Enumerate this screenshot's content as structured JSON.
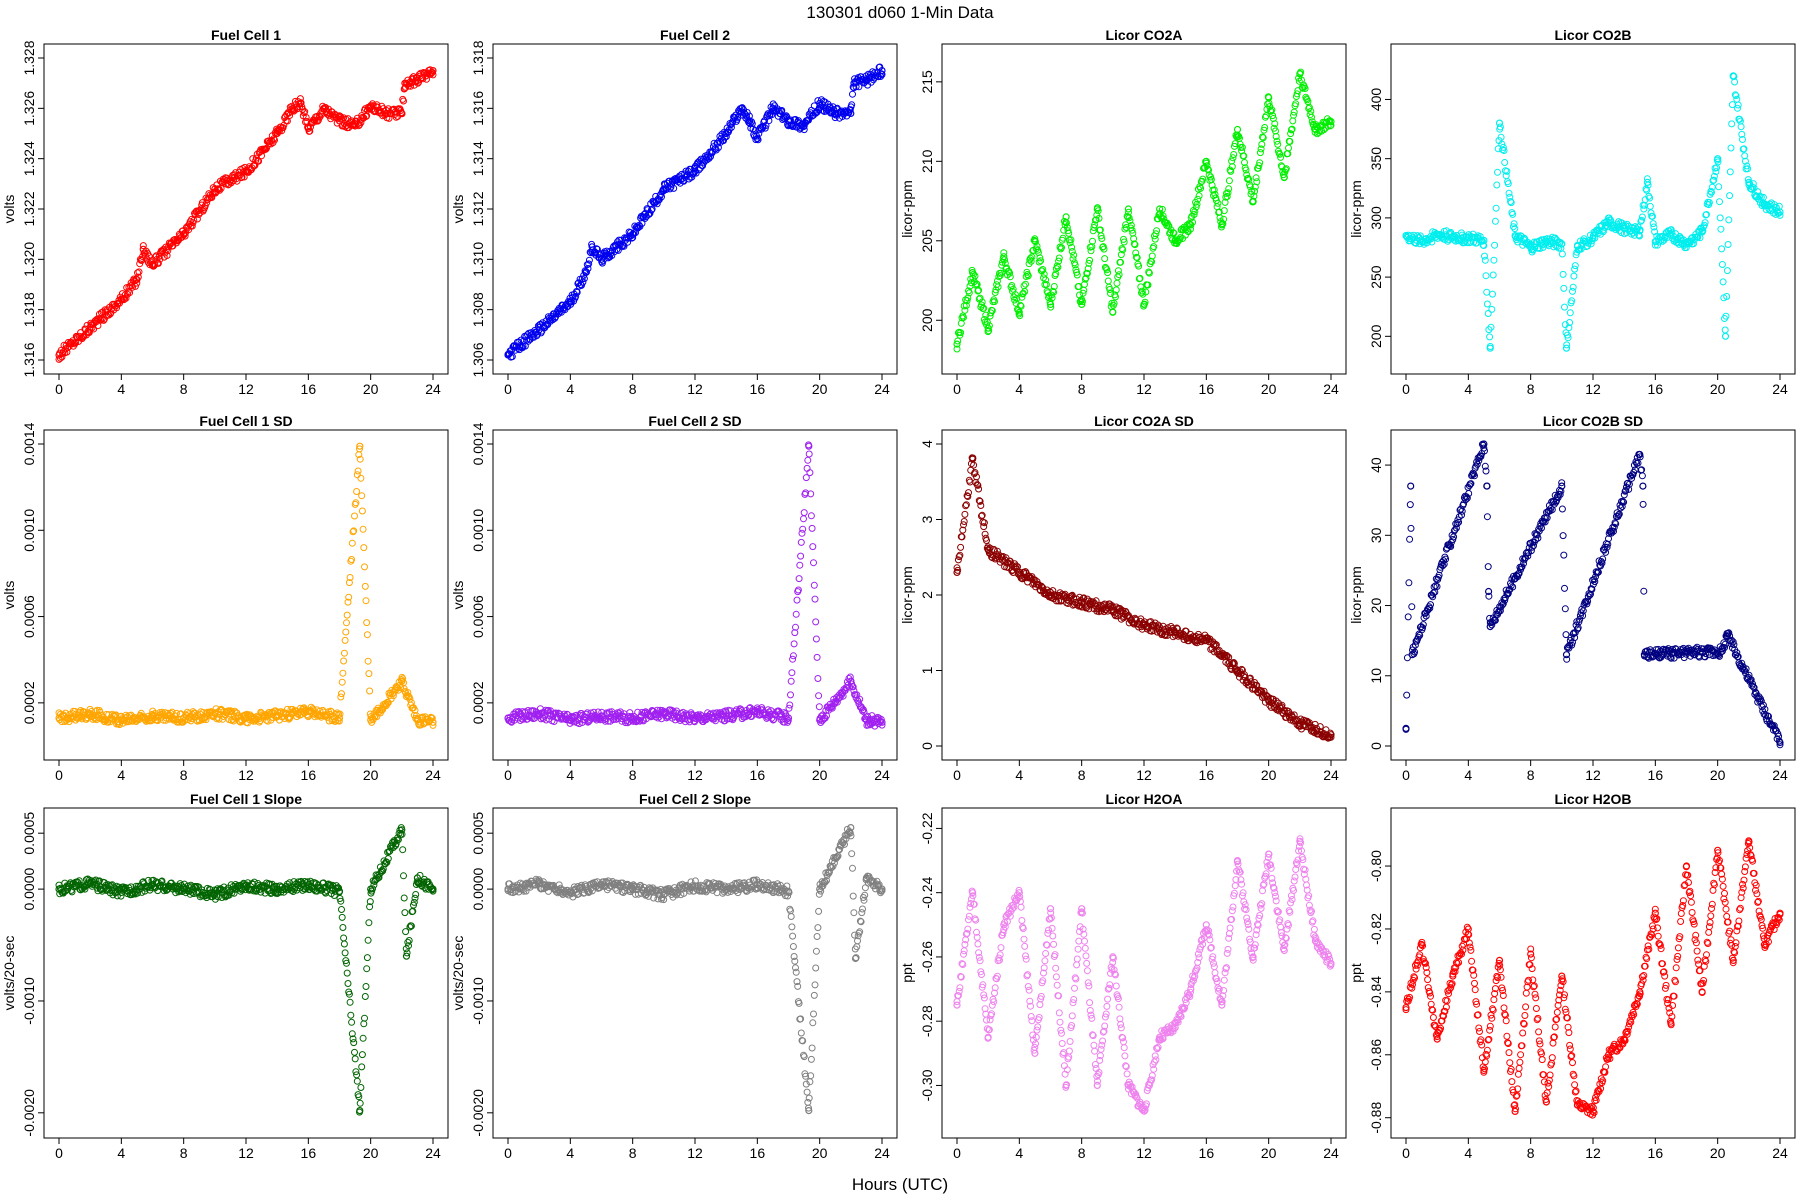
{
  "figure": {
    "title": "130301    d060    1-Min Data",
    "xlabel": "Hours (UTC)"
  },
  "chart_data": [
    {
      "type": "scatter",
      "title": "Fuel Cell 1",
      "ylabel": "volts",
      "color": "#ff0000",
      "xlim": [
        0,
        24
      ],
      "ylim": [
        1.316,
        1.328
      ],
      "xticks": [
        0,
        4,
        8,
        12,
        16,
        20,
        24
      ],
      "yticks": [
        1.316,
        1.318,
        1.32,
        1.322,
        1.324,
        1.326,
        1.328
      ],
      "ytick_labels": [
        "1.316",
        "1.318",
        "1.320",
        "1.322",
        "1.324",
        "1.326",
        "1.328"
      ],
      "x": [
        0,
        2,
        4,
        5,
        5.4,
        6,
        8,
        10,
        12,
        14,
        15,
        15.5,
        16,
        17,
        18,
        19,
        20,
        21,
        22,
        22.2,
        23,
        24
      ],
      "y": [
        1.3162,
        1.3173,
        1.3184,
        1.3192,
        1.3204,
        1.3198,
        1.321,
        1.3228,
        1.3235,
        1.325,
        1.326,
        1.3262,
        1.3252,
        1.326,
        1.3255,
        1.3253,
        1.3261,
        1.3258,
        1.3258,
        1.327,
        1.3271,
        1.3275
      ]
    },
    {
      "type": "scatter",
      "title": "Fuel Cell 2",
      "ylabel": "volts",
      "color": "#0000ee",
      "xlim": [
        0,
        24
      ],
      "ylim": [
        1.306,
        1.318
      ],
      "xticks": [
        0,
        4,
        8,
        12,
        16,
        20,
        24
      ],
      "yticks": [
        1.306,
        1.308,
        1.31,
        1.312,
        1.314,
        1.316,
        1.318
      ],
      "ytick_labels": [
        "1.306",
        "1.308",
        "1.310",
        "1.312",
        "1.314",
        "1.316",
        "1.318"
      ],
      "x": [
        0,
        2,
        4,
        5,
        5.4,
        6,
        8,
        10,
        12,
        14,
        15,
        15.5,
        16,
        17,
        18,
        19,
        20,
        21,
        22,
        22.2,
        23,
        24
      ],
      "y": [
        1.3062,
        1.3072,
        1.3083,
        1.3095,
        1.3105,
        1.31,
        1.311,
        1.3128,
        1.3135,
        1.315,
        1.316,
        1.3155,
        1.3148,
        1.316,
        1.3155,
        1.3153,
        1.3162,
        1.3158,
        1.3158,
        1.317,
        1.3171,
        1.3175
      ]
    },
    {
      "type": "scatter",
      "title": "Licor CO2A",
      "ylabel": "licor-ppm",
      "color": "#00ee00",
      "xlim": [
        0,
        24
      ],
      "ylim": [
        197.5,
        216.5
      ],
      "xticks": [
        0,
        4,
        8,
        12,
        16,
        20,
        24
      ],
      "yticks": [
        200,
        205,
        210,
        215
      ],
      "ytick_labels": [
        "200",
        "205",
        "210",
        "215"
      ],
      "x": [
        0,
        1,
        2,
        3,
        4,
        5,
        6,
        7,
        8,
        9,
        10,
        11,
        12,
        13,
        14,
        15,
        16,
        17,
        18,
        19,
        20,
        21,
        22,
        23,
        24
      ],
      "y": [
        198.5,
        203.0,
        199.5,
        204.0,
        200.5,
        205.0,
        201.0,
        206.5,
        201.0,
        207.0,
        200.5,
        207.0,
        201.0,
        207.0,
        205.0,
        206.0,
        210.0,
        206.0,
        212.0,
        207.5,
        214.0,
        209.0,
        215.5,
        212.0,
        212.5
      ]
    },
    {
      "type": "scatter",
      "title": "Licor CO2B",
      "ylabel": "licor-ppm",
      "color": "#00eeee",
      "xlim": [
        0,
        24
      ],
      "ylim": [
        180,
        435
      ],
      "xticks": [
        0,
        4,
        8,
        12,
        16,
        20,
        24
      ],
      "yticks": [
        200,
        250,
        300,
        350,
        400
      ],
      "ytick_labels": [
        "200",
        "250",
        "300",
        "350",
        "400"
      ],
      "x": [
        0,
        1,
        2,
        3,
        4,
        5,
        5.4,
        6,
        7,
        8,
        9,
        10,
        10.3,
        11,
        12,
        13,
        14,
        15,
        15.5,
        16,
        17,
        18,
        19,
        20,
        20.5,
        21,
        22,
        23,
        24
      ],
      "y": [
        285,
        280,
        286,
        284,
        283,
        281,
        190,
        380,
        285,
        275,
        280,
        278,
        190,
        276,
        283,
        296,
        291,
        289,
        330,
        280,
        286,
        278,
        288,
        350,
        200,
        420,
        330,
        312,
        305
      ]
    },
    {
      "type": "scatter",
      "title": "Fuel Cell 1 SD",
      "ylabel": "volts",
      "color": "#ffa500",
      "xlim": [
        0,
        24
      ],
      "ylim": [
        0.0,
        0.0014
      ],
      "xticks": [
        0,
        4,
        8,
        12,
        16,
        20,
        24
      ],
      "yticks": [
        0.0002,
        0.0006,
        0.001,
        0.0014
      ],
      "ytick_labels": [
        "0.0002",
        "0.0006",
        "0.0010",
        "0.0014"
      ],
      "x": [
        0,
        2,
        4,
        6,
        8,
        10,
        12,
        14,
        16,
        18,
        19.3,
        20,
        22,
        23,
        24
      ],
      "y": [
        0.00013,
        0.00015,
        0.00012,
        0.00014,
        0.00013,
        0.00015,
        0.00013,
        0.00014,
        0.00016,
        0.00013,
        0.00139,
        0.00012,
        0.0003,
        0.00012,
        0.00011
      ]
    },
    {
      "type": "scatter",
      "title": "Fuel Cell 2 SD",
      "ylabel": "volts",
      "color": "#a020f0",
      "xlim": [
        0,
        24
      ],
      "ylim": [
        0.0,
        0.0014
      ],
      "xticks": [
        0,
        4,
        8,
        12,
        16,
        20,
        24
      ],
      "yticks": [
        0.0002,
        0.0006,
        0.001,
        0.0014
      ],
      "ytick_labels": [
        "0.0002",
        "0.0006",
        "0.0010",
        "0.0014"
      ],
      "x": [
        0,
        2,
        4,
        6,
        8,
        10,
        12,
        14,
        16,
        18,
        19.3,
        20,
        22,
        23,
        24
      ],
      "y": [
        0.00013,
        0.00015,
        0.00012,
        0.00014,
        0.00013,
        0.00015,
        0.00013,
        0.00014,
        0.00016,
        0.00013,
        0.00139,
        0.00012,
        0.0003,
        0.00012,
        0.00011
      ]
    },
    {
      "type": "scatter",
      "title": "Licor CO2A SD",
      "ylabel": "licor-ppm",
      "color": "#8b0000",
      "xlim": [
        0,
        24
      ],
      "ylim": [
        0,
        4.0
      ],
      "xticks": [
        0,
        4,
        8,
        12,
        16,
        20,
        24
      ],
      "yticks": [
        0,
        1,
        2,
        3,
        4
      ],
      "ytick_labels": [
        "0",
        "1",
        "2",
        "3",
        "4"
      ],
      "x": [
        0,
        1,
        2,
        4,
        6,
        8,
        10,
        12,
        14,
        16,
        18,
        20,
        22,
        24
      ],
      "y": [
        2.3,
        3.8,
        2.6,
        2.3,
        2.0,
        1.9,
        1.8,
        1.6,
        1.5,
        1.4,
        1.0,
        0.6,
        0.3,
        0.15
      ]
    },
    {
      "type": "scatter",
      "title": "Licor CO2B SD",
      "ylabel": "licor-ppm",
      "color": "#000080",
      "xlim": [
        0,
        24
      ],
      "ylim": [
        0,
        43
      ],
      "xticks": [
        0,
        4,
        8,
        12,
        16,
        20,
        24
      ],
      "yticks": [
        0,
        10,
        20,
        30,
        40
      ],
      "ytick_labels": [
        "0",
        "10",
        "20",
        "30",
        "40"
      ],
      "x": [
        0,
        0.3,
        0.4,
        5.0,
        5.2,
        5.3,
        5.4,
        10.0,
        10.3,
        15.0,
        15.2,
        15.3,
        20.3,
        20.6,
        20.8,
        24
      ],
      "y": [
        2.5,
        37.0,
        13.0,
        43.0,
        37.0,
        22.0,
        17.0,
        37.0,
        13.0,
        41.5,
        37.0,
        13.0,
        13.5,
        16.0,
        15.0,
        0.5
      ]
    },
    {
      "type": "scatter",
      "title": "Fuel Cell 1 Slope",
      "ylabel": "volts/20-sec",
      "color": "#006400",
      "xlim": [
        0,
        24
      ],
      "ylim": [
        -0.0021,
        0.0006
      ],
      "xticks": [
        0,
        4,
        8,
        12,
        16,
        20,
        24
      ],
      "yticks": [
        -0.002,
        -0.001,
        0.0,
        0.0005
      ],
      "ytick_labels": [
        "-0.0020",
        "-0.0010",
        "0.0000",
        "0.0005"
      ],
      "x": [
        0,
        2,
        4,
        6,
        8,
        10,
        12,
        14,
        16,
        18,
        19.3,
        20,
        22,
        22.3,
        23,
        24
      ],
      "y": [
        0.0,
        5e-05,
        -3e-05,
        4e-05,
        0.0,
        -5e-05,
        3e-05,
        0.0,
        4e-05,
        -2e-05,
        -0.00198,
        0.0,
        0.00053,
        -0.0006,
        0.0001,
        0.0
      ]
    },
    {
      "type": "scatter",
      "title": "Fuel Cell 2 Slope",
      "ylabel": "volts/20-sec",
      "color": "#808080",
      "xlim": [
        0,
        24
      ],
      "ylim": [
        -0.0021,
        0.0006
      ],
      "xticks": [
        0,
        4,
        8,
        12,
        16,
        20,
        24
      ],
      "yticks": [
        -0.002,
        -0.001,
        0.0,
        0.0005
      ],
      "ytick_labels": [
        "-0.0020",
        "-0.0010",
        "0.0000",
        "0.0005"
      ],
      "x": [
        0,
        2,
        4,
        6,
        8,
        10,
        12,
        14,
        16,
        18,
        19.3,
        20,
        22,
        22.3,
        23,
        24
      ],
      "y": [
        0.0,
        5e-05,
        -3e-05,
        4e-05,
        0.0,
        -5e-05,
        3e-05,
        0.0,
        4e-05,
        -2e-05,
        -0.00198,
        0.0,
        0.00055,
        -0.00062,
        0.0001,
        0.0
      ]
    },
    {
      "type": "scatter",
      "title": "Licor H2OA",
      "ylabel": "ppt",
      "color": "#ee82ee",
      "xlim": [
        0,
        24
      ],
      "ylim": [
        -0.312,
        -0.218
      ],
      "xticks": [
        0,
        4,
        8,
        12,
        16,
        20,
        24
      ],
      "yticks": [
        -0.3,
        -0.28,
        -0.26,
        -0.24,
        -0.22
      ],
      "ytick_labels": [
        "-0.30",
        "-0.28",
        "-0.26",
        "-0.24",
        "-0.22"
      ],
      "x": [
        0,
        1,
        2,
        3,
        4,
        5,
        6,
        7,
        8,
        9,
        10,
        11,
        12,
        13,
        14,
        15,
        16,
        17,
        18,
        19,
        20,
        21,
        22,
        23,
        24
      ],
      "y": [
        -0.275,
        -0.24,
        -0.285,
        -0.25,
        -0.24,
        -0.29,
        -0.245,
        -0.3,
        -0.245,
        -0.3,
        -0.26,
        -0.3,
        -0.308,
        -0.285,
        -0.282,
        -0.27,
        -0.25,
        -0.275,
        -0.23,
        -0.26,
        -0.228,
        -0.258,
        -0.224,
        -0.255,
        -0.262
      ]
    },
    {
      "type": "scatter",
      "title": "Licor H2OB",
      "ylabel": "ppt",
      "color": "#ff0000",
      "xlim": [
        0,
        24
      ],
      "ylim": [
        -0.882,
        -0.786
      ],
      "xticks": [
        0,
        4,
        8,
        12,
        16,
        20,
        24
      ],
      "yticks": [
        -0.88,
        -0.86,
        -0.84,
        -0.82,
        -0.8
      ],
      "ytick_labels": [
        "-0.88",
        "-0.86",
        "-0.84",
        "-0.82",
        "-0.80"
      ],
      "x": [
        0,
        1,
        2,
        3,
        4,
        5,
        6,
        7,
        8,
        9,
        10,
        11,
        12,
        13,
        14,
        15,
        16,
        17,
        18,
        19,
        20,
        21,
        22,
        23,
        24
      ],
      "y": [
        -0.845,
        -0.825,
        -0.855,
        -0.835,
        -0.82,
        -0.865,
        -0.83,
        -0.878,
        -0.828,
        -0.875,
        -0.835,
        -0.876,
        -0.878,
        -0.86,
        -0.855,
        -0.84,
        -0.815,
        -0.85,
        -0.8,
        -0.84,
        -0.795,
        -0.83,
        -0.792,
        -0.825,
        -0.815
      ]
    }
  ]
}
